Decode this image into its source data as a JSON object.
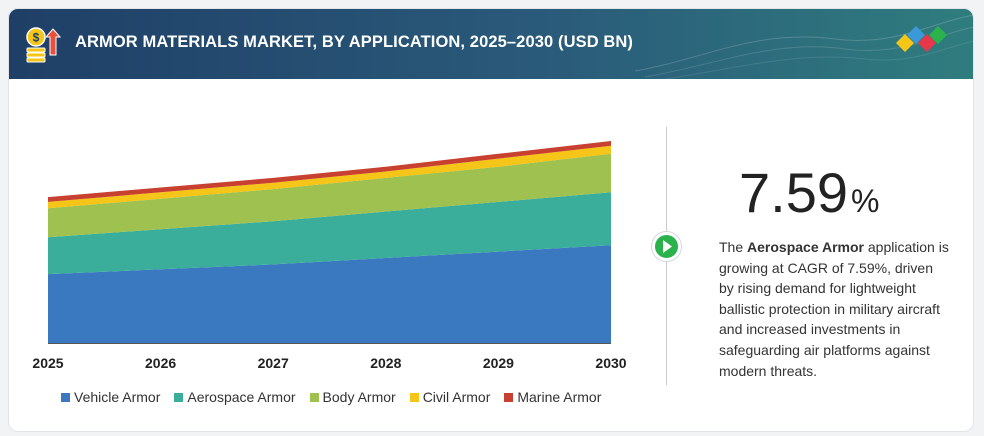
{
  "header": {
    "title": "ARMOR MATERIALS MARKET, BY APPLICATION, 2025–2030 (USD BN)",
    "icon": "money-growth-icon",
    "logo": "diamond-logo"
  },
  "highlight": {
    "value": "7.59",
    "unit": "%",
    "desc_prefix": "The ",
    "desc_bold": "Aerospace Armor",
    "desc_rest": " application is growing at CAGR of 7.59%, driven by rising demand for lightweight ballistic protection in military aircraft and increased investments in safeguarding air platforms against modern threats."
  },
  "chart_data": {
    "type": "area",
    "stacked": true,
    "x": [
      "2025",
      "2026",
      "2027",
      "2028",
      "2029",
      "2030"
    ],
    "series": [
      {
        "name": "Vehicle Armor",
        "color": "#3a78bf",
        "values": [
          4.3,
          4.6,
          4.9,
          5.3,
          5.7,
          6.1
        ]
      },
      {
        "name": "Aerospace Armor",
        "color": "#3aae9a",
        "values": [
          2.3,
          2.5,
          2.7,
          2.9,
          3.1,
          3.3
        ]
      },
      {
        "name": "Body Armor",
        "color": "#9fc14f",
        "values": [
          1.8,
          1.9,
          2.0,
          2.1,
          2.2,
          2.4
        ]
      },
      {
        "name": "Civil Armor",
        "color": "#f5c518",
        "values": [
          0.4,
          0.4,
          0.4,
          0.4,
          0.5,
          0.5
        ]
      },
      {
        "name": "Marine Armor",
        "color": "#c8402f",
        "values": [
          0.3,
          0.3,
          0.3,
          0.3,
          0.3,
          0.3
        ]
      }
    ],
    "ylim": [
      0,
      12.6
    ],
    "grid": false,
    "legend": "bottom"
  }
}
